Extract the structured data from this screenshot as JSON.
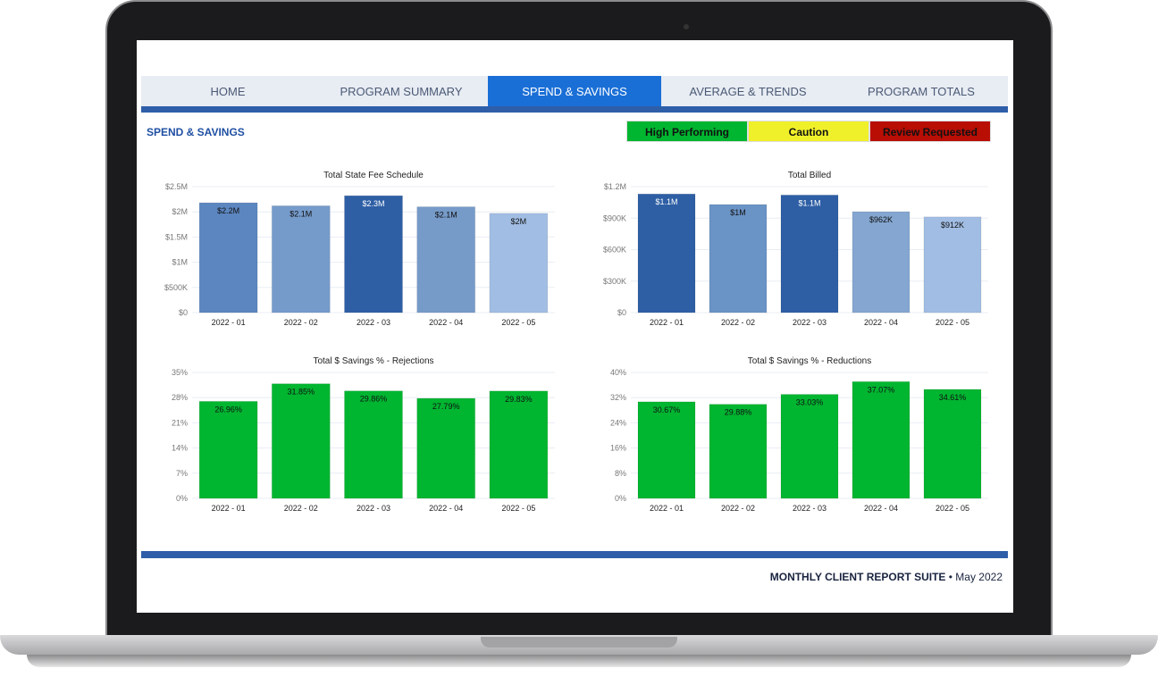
{
  "tabs": [
    {
      "label": "HOME"
    },
    {
      "label": "PROGRAM SUMMARY"
    },
    {
      "label": "SPEND & SAVINGS",
      "active": true
    },
    {
      "label": "AVERAGE & TRENDS"
    },
    {
      "label": "PROGRAM TOTALS"
    }
  ],
  "page_title": "SPEND & SAVINGS",
  "legend": [
    {
      "label": "High Performing",
      "color": "#00b530"
    },
    {
      "label": "Caution",
      "color": "#f0f02a"
    },
    {
      "label": "Review Requested",
      "color": "#b80e04"
    }
  ],
  "footer": {
    "suite": "MONTHLY CLIENT REPORT SUITE",
    "separator": " • ",
    "date": "May 2022"
  },
  "chart_data": [
    {
      "type": "bar",
      "title": "Total State Fee Schedule",
      "categories": [
        "2022 - 01",
        "2022 - 02",
        "2022 - 03",
        "2022 - 04",
        "2022 - 05"
      ],
      "values": [
        2.18,
        2.12,
        2.32,
        2.1,
        1.97
      ],
      "unit": "M USD",
      "labels": [
        "$2.2M",
        "$2.1M",
        "$2.3M",
        "$2.1M",
        "$2M"
      ],
      "ylim": [
        0,
        2.5
      ],
      "yticks": [
        "$0",
        "$500K",
        "$1M",
        "$1.5M",
        "$2M",
        "$2.5M"
      ],
      "colors": [
        "#5b86c0",
        "#759bcb",
        "#2e5fa5",
        "#769bc9",
        "#a1bde3"
      ],
      "label_colors": [
        "#111",
        "#111",
        "#fff",
        "#111",
        "#111"
      ]
    },
    {
      "type": "bar",
      "title": "Total Billed",
      "categories": [
        "2022 - 01",
        "2022 - 02",
        "2022 - 03",
        "2022 - 04",
        "2022 - 05"
      ],
      "values": [
        1.13,
        1.03,
        1.12,
        0.962,
        0.912
      ],
      "unit": "M USD",
      "labels": [
        "$1.1M",
        "$1M",
        "$1.1M",
        "$962K",
        "$912K"
      ],
      "ylim": [
        0,
        1.2
      ],
      "yticks": [
        "$0",
        "$300K",
        "$600K",
        "$900K",
        "$1.2M"
      ],
      "colors": [
        "#2e5fa5",
        "#6a93c6",
        "#2e5fa5",
        "#84a6d0",
        "#a1bde3"
      ],
      "label_colors": [
        "#fff",
        "#111",
        "#fff",
        "#111",
        "#111"
      ]
    },
    {
      "type": "bar",
      "title": "Total $ Savings % - Rejections",
      "categories": [
        "2022 - 01",
        "2022 - 02",
        "2022 - 03",
        "2022 - 04",
        "2022 - 05"
      ],
      "values": [
        26.96,
        31.85,
        29.86,
        27.79,
        29.83
      ],
      "unit": "%",
      "labels": [
        "26.96%",
        "31.85%",
        "29.86%",
        "27.79%",
        "29.83%"
      ],
      "ylim": [
        0,
        35
      ],
      "yticks": [
        "0%",
        "7%",
        "14%",
        "21%",
        "28%",
        "35%"
      ],
      "colors": [
        "#00b530",
        "#00b530",
        "#00b530",
        "#00b530",
        "#00b530"
      ],
      "label_colors": [
        "#111",
        "#111",
        "#111",
        "#111",
        "#111"
      ]
    },
    {
      "type": "bar",
      "title": "Total $ Savings % - Reductions",
      "categories": [
        "2022 - 01",
        "2022 - 02",
        "2022 - 03",
        "2022 - 04",
        "2022 - 05"
      ],
      "values": [
        30.67,
        29.88,
        33.03,
        37.07,
        34.61
      ],
      "unit": "%",
      "labels": [
        "30.67%",
        "29.88%",
        "33.03%",
        "37.07%",
        "34.61%"
      ],
      "ylim": [
        0,
        40
      ],
      "yticks": [
        "0%",
        "8%",
        "16%",
        "24%",
        "32%",
        "40%"
      ],
      "colors": [
        "#00b530",
        "#00b530",
        "#00b530",
        "#00b530",
        "#00b530"
      ],
      "label_colors": [
        "#111",
        "#111",
        "#111",
        "#111",
        "#111"
      ]
    }
  ]
}
